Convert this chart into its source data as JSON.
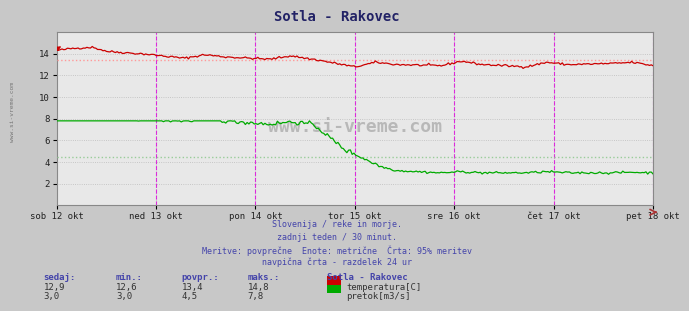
{
  "title": "Sotla - Rakovec",
  "bg_color": "#c8c8c8",
  "plot_bg_color": "#e8e8e8",
  "plot_border_color": "#888888",
  "grid_color": "#bbbbbb",
  "x_labels": [
    "sob 12 okt",
    "ned 13 okt",
    "pon 14 okt",
    "tor 15 okt",
    "sre 16 okt",
    "čet 17 okt",
    "pet 18 okt"
  ],
  "x_ticks_norm": [
    0.0,
    0.1667,
    0.3333,
    0.5,
    0.6667,
    0.8333,
    1.0
  ],
  "y_ticks": [
    2,
    4,
    6,
    8,
    10,
    12,
    14
  ],
  "ylim": [
    0,
    16
  ],
  "xlim": [
    0,
    1
  ],
  "temp_color": "#cc0000",
  "flow_color": "#00aa00",
  "vline_color": "#dd00dd",
  "hline_temp_color": "#ff9999",
  "hline_flow_color": "#99cc99",
  "temp_avg": 13.4,
  "temp_max": 14.8,
  "temp_min": 12.6,
  "flow_avg": 4.5,
  "flow_max": 7.8,
  "flow_min": 3.0,
  "temp_sedaj": 12.9,
  "flow_sedaj": 3.0,
  "subtitle_lines": [
    "Slovenija / reke in morje.",
    "zadnji teden / 30 minut.",
    "Meritve: povprečne  Enote: metrične  Črta: 95% meritev",
    "navpična črta - razdelek 24 ur"
  ],
  "label_col1": "sedaj:",
  "label_col2": "min.:",
  "label_col3": "povpr.:",
  "label_col4": "maks.:",
  "label_col5": "Sotla - Rakovec",
  "text_color_blue": "#4444aa",
  "text_color_dark": "#444444",
  "watermark": "www.si-vreme.com"
}
